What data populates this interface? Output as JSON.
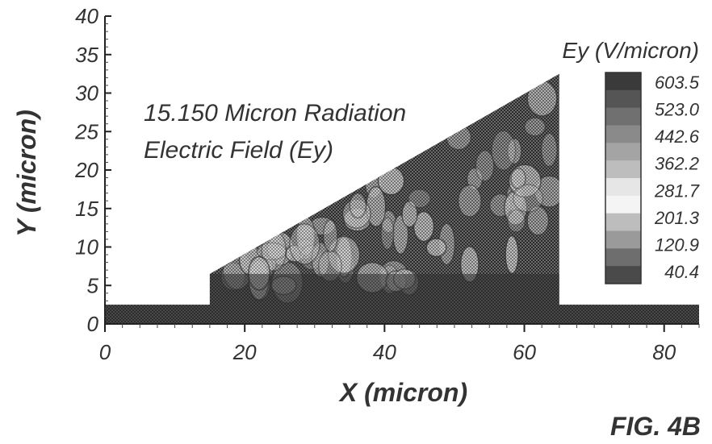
{
  "chart_data": {
    "type": "heatmap",
    "title": "15.150 Micron Radiation",
    "subtitle": "Electric Field (Ey)",
    "xlabel": "X (micron)",
    "ylabel": "Y (micron)",
    "xlim": [
      0,
      85
    ],
    "ylim": [
      0,
      40
    ],
    "x_ticks": [
      0,
      20,
      40,
      60,
      80
    ],
    "y_ticks": [
      0,
      5,
      10,
      15,
      20,
      25,
      30,
      35,
      40
    ],
    "colorbar": {
      "title": "Ey (V/micron)",
      "levels": [
        "603.5",
        "523.0",
        "442.6",
        "362.2",
        "281.7",
        "201.3",
        "120.9",
        "40.4"
      ]
    },
    "grid": false
  },
  "figure_label": "FIG. 4B"
}
